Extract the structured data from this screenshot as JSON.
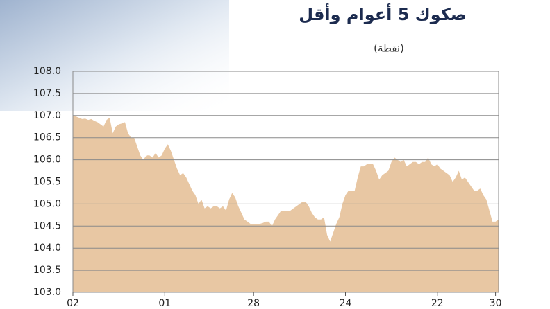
{
  "chart_data": {
    "type": "area",
    "title": "صكوك 5 أعوام وأقل",
    "unit": "(نقطة)",
    "categories": [
      "02",
      null,
      null,
      null,
      null,
      null,
      null,
      null,
      null,
      null,
      null,
      null,
      null,
      null,
      null,
      null,
      null,
      null,
      null,
      null,
      null,
      null,
      null,
      null,
      null,
      null,
      null,
      null,
      null,
      null,
      "01",
      null,
      null,
      null,
      null,
      null,
      null,
      null,
      null,
      null,
      null,
      null,
      null,
      null,
      null,
      null,
      null,
      null,
      null,
      null,
      null,
      null,
      null,
      null,
      null,
      null,
      null,
      null,
      null,
      "28",
      null,
      null,
      null,
      null,
      null,
      null,
      null,
      null,
      null,
      null,
      null,
      null,
      null,
      null,
      null,
      null,
      null,
      null,
      null,
      null,
      null,
      null,
      null,
      null,
      null,
      null,
      null,
      null,
      null,
      "24",
      null,
      null,
      null,
      null,
      null,
      null,
      null,
      null,
      null,
      null,
      null,
      null,
      null,
      null,
      null,
      null,
      null,
      null,
      null,
      null,
      null,
      null,
      null,
      null,
      null,
      null,
      null,
      null,
      null,
      "22",
      null,
      null,
      null,
      null,
      null,
      null,
      null,
      null,
      null,
      null,
      null,
      null,
      null,
      null,
      null,
      null,
      null,
      null,
      "30",
      null
    ],
    "values": [
      107.0,
      106.98,
      106.95,
      106.92,
      106.93,
      106.9,
      106.92,
      106.88,
      106.85,
      106.8,
      106.75,
      106.9,
      106.95,
      106.6,
      106.75,
      106.8,
      106.82,
      106.85,
      106.6,
      106.5,
      106.5,
      106.3,
      106.1,
      106.0,
      106.1,
      106.1,
      106.05,
      106.15,
      106.05,
      106.1,
      106.25,
      106.35,
      106.2,
      106.0,
      105.8,
      105.65,
      105.7,
      105.6,
      105.45,
      105.3,
      105.2,
      105.0,
      105.1,
      104.9,
      104.95,
      104.9,
      104.95,
      104.95,
      104.9,
      104.95,
      104.85,
      105.1,
      105.25,
      105.15,
      104.95,
      104.8,
      104.65,
      104.6,
      104.55,
      104.55,
      104.55,
      104.55,
      104.57,
      104.6,
      104.6,
      104.5,
      104.65,
      104.75,
      104.85,
      104.85,
      104.85,
      104.85,
      104.9,
      104.95,
      105.0,
      105.05,
      105.05,
      104.95,
      104.8,
      104.7,
      104.65,
      104.65,
      104.7,
      104.3,
      104.15,
      104.35,
      104.55,
      104.7,
      105.0,
      105.2,
      105.3,
      105.3,
      105.3,
      105.6,
      105.85,
      105.85,
      105.9,
      105.9,
      105.9,
      105.75,
      105.55,
      105.65,
      105.7,
      105.75,
      105.95,
      106.05,
      106.0,
      105.95,
      106.0,
      105.85,
      105.9,
      105.95,
      105.95,
      105.9,
      105.95,
      105.95,
      106.05,
      105.9,
      105.85,
      105.9,
      105.8,
      105.75,
      105.7,
      105.65,
      105.5,
      105.6,
      105.75,
      105.55,
      105.6,
      105.5,
      105.4,
      105.3,
      105.3,
      105.35,
      105.2,
      105.1,
      104.85,
      104.6,
      104.6,
      104.65
    ],
    "color": "#e8c7a3",
    "ylim": [
      103,
      108
    ],
    "yticks": [
      {
        "value": 103,
        "label": "103.0"
      },
      103.5,
      {
        "value": 104,
        "label": "104.0"
      },
      104.5,
      {
        "value": 105,
        "label": "105.0"
      },
      105.5,
      {
        "value": 106,
        "label": "106.0"
      },
      106.5,
      {
        "value": 107,
        "label": "107.0"
      },
      107.5,
      {
        "value": 108,
        "label": "108.0"
      }
    ],
    "grid": true
  }
}
